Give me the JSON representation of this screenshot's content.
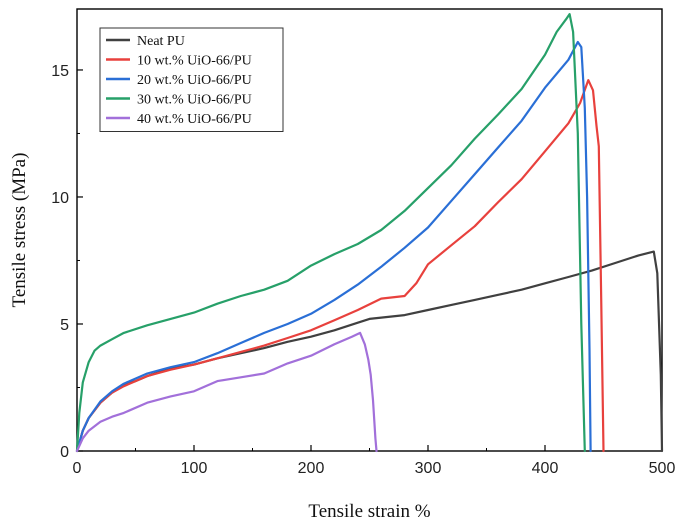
{
  "chart_data": {
    "type": "line",
    "title": "",
    "xlabel": "Tensile strain %",
    "ylabel": "Tensile stress (MPa)",
    "xlim": [
      0,
      500
    ],
    "ylim": [
      0,
      17.4
    ],
    "xticks": [
      0,
      100,
      200,
      300,
      400,
      500
    ],
    "yticks": [
      0,
      5,
      10,
      15
    ],
    "grid": false,
    "legend_position": "top-left",
    "series": [
      {
        "name": "Neat PU",
        "color": "#404040",
        "x": [
          0,
          5,
          10,
          20,
          30,
          40,
          50,
          60,
          80,
          100,
          120,
          140,
          160,
          180,
          200,
          220,
          240,
          250,
          260,
          280,
          300,
          320,
          340,
          360,
          380,
          400,
          420,
          440,
          460,
          480,
          493,
          496,
          499,
          500
        ],
        "y": [
          0,
          0.8,
          1.3,
          1.9,
          2.3,
          2.6,
          2.75,
          2.95,
          3.25,
          3.4,
          3.65,
          3.85,
          4.05,
          4.3,
          4.5,
          4.75,
          5.05,
          5.2,
          5.25,
          5.35,
          5.55,
          5.75,
          5.95,
          6.15,
          6.35,
          6.6,
          6.85,
          7.1,
          7.4,
          7.7,
          7.85,
          7.0,
          3.0,
          0
        ]
      },
      {
        "name": "10 wt.% UiO-66/PU",
        "color": "#e8413d",
        "x": [
          0,
          5,
          10,
          20,
          30,
          40,
          60,
          80,
          100,
          120,
          140,
          160,
          180,
          200,
          220,
          240,
          260,
          280,
          290,
          300,
          320,
          340,
          360,
          380,
          400,
          420,
          430,
          437,
          441,
          444,
          446,
          448,
          450
        ],
        "y": [
          0,
          0.8,
          1.3,
          1.9,
          2.3,
          2.55,
          2.95,
          3.2,
          3.4,
          3.65,
          3.9,
          4.15,
          4.45,
          4.75,
          5.15,
          5.55,
          6.0,
          6.1,
          6.6,
          7.35,
          8.1,
          8.85,
          9.8,
          10.7,
          11.8,
          12.9,
          13.7,
          14.6,
          14.2,
          12.8,
          12.0,
          6.0,
          0
        ]
      },
      {
        "name": "20 wt.% UiO-66/PU",
        "color": "#2a6fd6",
        "x": [
          0,
          5,
          10,
          20,
          30,
          40,
          60,
          80,
          100,
          120,
          140,
          160,
          180,
          200,
          220,
          240,
          260,
          280,
          300,
          320,
          340,
          360,
          380,
          400,
          420,
          428,
          431,
          434,
          436,
          438,
          439
        ],
        "y": [
          0,
          0.8,
          1.3,
          1.95,
          2.35,
          2.65,
          3.05,
          3.3,
          3.5,
          3.85,
          4.25,
          4.65,
          5.0,
          5.4,
          5.95,
          6.55,
          7.25,
          8.0,
          8.8,
          9.85,
          10.9,
          11.95,
          13.0,
          14.3,
          15.4,
          16.1,
          15.9,
          13.5,
          10.0,
          4.0,
          0
        ]
      },
      {
        "name": "30 wt.% UiO-66/PU",
        "color": "#27a069",
        "x": [
          0,
          2,
          5,
          10,
          15,
          20,
          30,
          40,
          60,
          80,
          100,
          120,
          140,
          160,
          180,
          200,
          220,
          240,
          260,
          280,
          300,
          320,
          340,
          360,
          380,
          400,
          410,
          418,
          421,
          424,
          428,
          431,
          434
        ],
        "y": [
          0,
          1.5,
          2.7,
          3.5,
          3.95,
          4.15,
          4.4,
          4.65,
          4.95,
          5.2,
          5.45,
          5.8,
          6.1,
          6.35,
          6.7,
          7.3,
          7.75,
          8.15,
          8.7,
          9.45,
          10.35,
          11.25,
          12.3,
          13.25,
          14.25,
          15.6,
          16.5,
          17.0,
          17.2,
          16.5,
          12.5,
          5.0,
          0
        ]
      },
      {
        "name": "40 wt.% UiO-66/PU",
        "color": "#a270da",
        "x": [
          0,
          5,
          10,
          20,
          30,
          40,
          60,
          80,
          100,
          120,
          140,
          160,
          180,
          200,
          220,
          235,
          242,
          246,
          249,
          251,
          253,
          255,
          256
        ],
        "y": [
          0,
          0.5,
          0.8,
          1.15,
          1.35,
          1.5,
          1.9,
          2.15,
          2.35,
          2.75,
          2.9,
          3.05,
          3.45,
          3.75,
          4.2,
          4.5,
          4.65,
          4.2,
          3.6,
          3.0,
          2.0,
          0.5,
          0
        ]
      }
    ]
  }
}
